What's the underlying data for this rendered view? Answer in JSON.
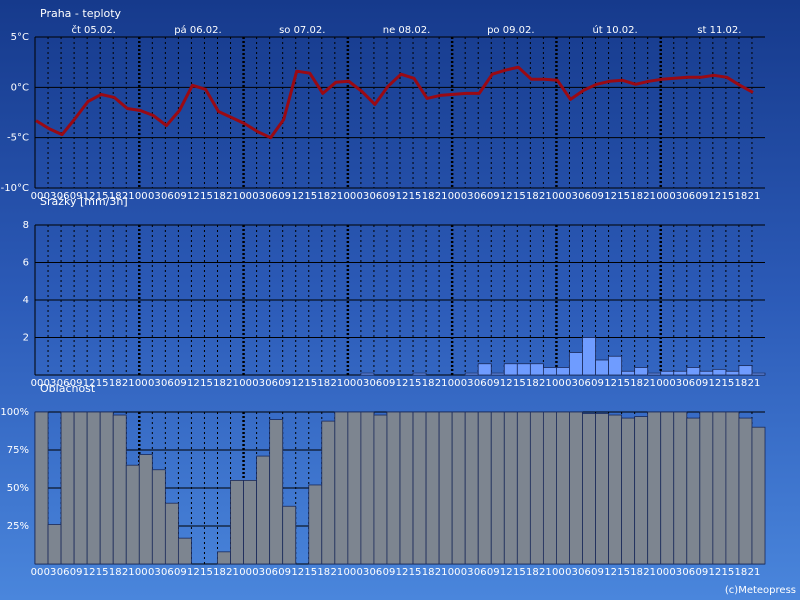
{
  "chart_data": [
    {
      "type": "line",
      "title": "Praha - teploty",
      "color": "#9a0a14",
      "day_labels": [
        "čt 05.02.",
        "pá 06.02.",
        "so 07.02.",
        "ne 08.02.",
        "po 09.02.",
        "út 10.02.",
        "st 11.02."
      ],
      "categories": [
        "00",
        "03",
        "06",
        "09",
        "12",
        "15",
        "18",
        "21",
        "00",
        "03",
        "06",
        "09",
        "12",
        "15",
        "18",
        "21",
        "00",
        "03",
        "06",
        "09",
        "12",
        "15",
        "18",
        "21",
        "00",
        "03",
        "06",
        "09",
        "12",
        "15",
        "18",
        "21",
        "00",
        "03",
        "06",
        "09",
        "12",
        "15",
        "18",
        "21",
        "00",
        "03",
        "06",
        "09",
        "12",
        "15",
        "18",
        "21",
        "00",
        "03",
        "06",
        "09",
        "12",
        "15",
        "18",
        "21"
      ],
      "values": [
        -3.3,
        -4.1,
        -4.7,
        -3.1,
        -1.4,
        -0.7,
        -1.0,
        -2.1,
        -2.3,
        -2.8,
        -3.8,
        -2.3,
        0.2,
        -0.2,
        -2.4,
        -3.0,
        -3.6,
        -4.4,
        -5.0,
        -3.2,
        1.6,
        1.4,
        -0.6,
        0.5,
        0.6,
        -0.4,
        -1.7,
        0.1,
        1.3,
        0.9,
        -1.1,
        -0.8,
        -0.7,
        -0.6,
        -0.6,
        1.3,
        1.7,
        2.0,
        0.8,
        0.8,
        0.7,
        -1.2,
        -0.3,
        0.3,
        0.6,
        0.7,
        0.3,
        0.6,
        0.8,
        0.9,
        1.0,
        1.0,
        1.2,
        1.0,
        0.2,
        -0.5
      ],
      "ylim": [
        -10,
        5
      ],
      "yticks": [
        {
          "value": 5,
          "label": "5°C"
        },
        {
          "value": 0,
          "label": "0°C"
        },
        {
          "value": -5,
          "label": "-5°C"
        },
        {
          "value": -10,
          "label": "-10°C"
        }
      ],
      "grid": true
    },
    {
      "type": "bar",
      "title": "Srážky [mm/3h]",
      "color": "#6f9cff",
      "categories": [
        "00",
        "03",
        "06",
        "09",
        "12",
        "15",
        "18",
        "21",
        "00",
        "03",
        "06",
        "09",
        "12",
        "15",
        "18",
        "21",
        "00",
        "03",
        "06",
        "09",
        "12",
        "15",
        "18",
        "21",
        "00",
        "03",
        "06",
        "09",
        "12",
        "15",
        "18",
        "21",
        "00",
        "03",
        "06",
        "09",
        "12",
        "15",
        "18",
        "21",
        "00",
        "03",
        "06",
        "09",
        "12",
        "15",
        "18",
        "21",
        "00",
        "03",
        "06",
        "09",
        "12",
        "15",
        "18",
        "21"
      ],
      "values": [
        0,
        0,
        0,
        0,
        0,
        0,
        0,
        0,
        0,
        0,
        0,
        0,
        0,
        0,
        0,
        0,
        0,
        0,
        0,
        0,
        0,
        0,
        0,
        0,
        0,
        0.1,
        0,
        0,
        0,
        0.1,
        0,
        0,
        0,
        0.1,
        0.6,
        0.1,
        0.6,
        0.6,
        0.6,
        0.4,
        0.4,
        1.2,
        2.0,
        0.8,
        1.0,
        0.2,
        0.4,
        0.1,
        0.2,
        0.2,
        0.4,
        0.2,
        0.3,
        0.2,
        0.5,
        0.1
      ],
      "ylim": [
        0,
        8
      ],
      "yticks": [
        2,
        4,
        6,
        8
      ],
      "grid": true
    },
    {
      "type": "bar",
      "title": "Oblačnost",
      "color": "#7d8590",
      "categories": [
        "00",
        "03",
        "06",
        "09",
        "12",
        "15",
        "18",
        "21",
        "00",
        "03",
        "06",
        "09",
        "12",
        "15",
        "18",
        "21",
        "00",
        "03",
        "06",
        "09",
        "12",
        "15",
        "18",
        "21",
        "00",
        "03",
        "06",
        "09",
        "12",
        "15",
        "18",
        "21",
        "00",
        "03",
        "06",
        "09",
        "12",
        "15",
        "18",
        "21",
        "00",
        "03",
        "06",
        "09",
        "12",
        "15",
        "18",
        "21",
        "00",
        "03",
        "06",
        "09",
        "12",
        "15",
        "18",
        "21"
      ],
      "values": [
        100,
        26,
        100,
        100,
        100,
        100,
        98,
        65,
        72,
        62,
        40,
        17,
        0,
        0,
        8,
        55,
        55,
        71,
        95,
        38,
        0,
        52,
        94,
        100,
        100,
        100,
        98,
        100,
        100,
        100,
        100,
        100,
        100,
        100,
        100,
        100,
        100,
        100,
        100,
        100,
        100,
        100,
        99,
        99,
        98,
        96,
        97,
        100,
        100,
        100,
        96,
        100,
        100,
        100,
        96,
        90
      ],
      "ylim": [
        0,
        100
      ],
      "yticks": [
        {
          "value": 100,
          "label": "100%"
        },
        {
          "value": 75,
          "label": "75%"
        },
        {
          "value": 50,
          "label": "50%"
        },
        {
          "value": 25,
          "label": "25%"
        }
      ],
      "grid": true
    }
  ],
  "source": "(c)Meteopress"
}
